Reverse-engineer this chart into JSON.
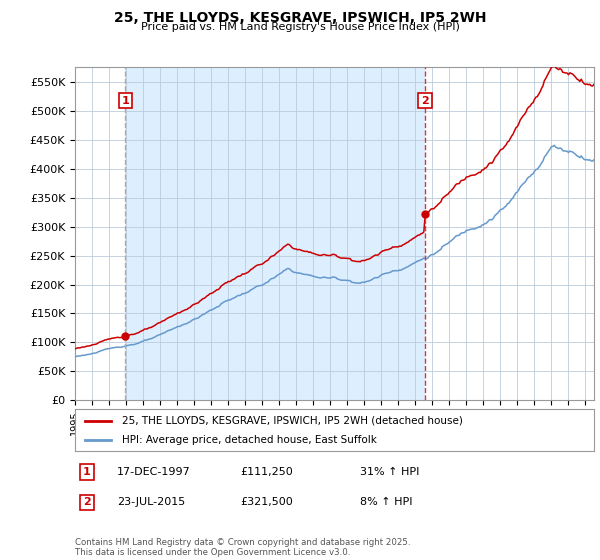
{
  "title": "25, THE LLOYDS, KESGRAVE, IPSWICH, IP5 2WH",
  "subtitle": "Price paid vs. HM Land Registry's House Price Index (HPI)",
  "ylim": [
    0,
    575000
  ],
  "yticks": [
    0,
    50000,
    100000,
    150000,
    200000,
    250000,
    300000,
    350000,
    400000,
    450000,
    500000,
    550000
  ],
  "ytick_labels": [
    "£0",
    "£50K",
    "£100K",
    "£150K",
    "£200K",
    "£250K",
    "£300K",
    "£350K",
    "£400K",
    "£450K",
    "£500K",
    "£550K"
  ],
  "background_color": "#ffffff",
  "chart_bg_color": "#ddeeff",
  "grid_color": "#bbccdd",
  "sale1_x": 1997.96,
  "sale1_price": 111250,
  "sale1_label": "1",
  "sale1_date": "17-DEC-1997",
  "sale1_pct": "31% ↑ HPI",
  "sale2_x": 2015.56,
  "sale2_price": 321500,
  "sale2_label": "2",
  "sale2_date": "23-JUL-2015",
  "sale2_pct": "8% ↑ HPI",
  "red_color": "#cc0000",
  "blue_color": "#6699cc",
  "sale1_vline_color": "#aaaaaa",
  "sale2_vline_color": "#dd3333",
  "legend_label1": "25, THE LLOYDS, KESGRAVE, IPSWICH, IP5 2WH (detached house)",
  "legend_label2": "HPI: Average price, detached house, East Suffolk",
  "footer": "Contains HM Land Registry data © Crown copyright and database right 2025.\nThis data is licensed under the Open Government Licence v3.0.",
  "xmin": 1995.0,
  "xmax": 2025.5
}
